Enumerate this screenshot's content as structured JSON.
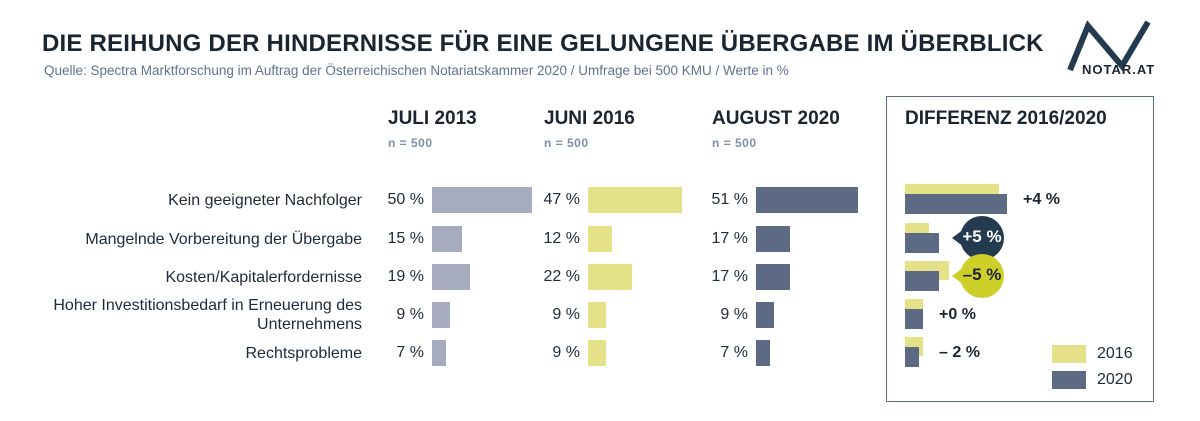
{
  "title": "DIE REIHUNG DER HINDERNISSE FÜR EINE GELUNGENE ÜBERGABE IM ÜBERBLICK",
  "subtitle": "Quelle: Spectra Marktforschung im Auftrag der Österreichischen Notariatskammer 2020 / Umfrage bei 500 KMU / Werte in %",
  "logo_text": "NOTAR.AT",
  "columns": [
    {
      "label": "JULI 2013",
      "n": "n = 500"
    },
    {
      "label": "JUNI 2016",
      "n": "n = 500"
    },
    {
      "label": "AUGUST 2020",
      "n": "n = 500"
    },
    {
      "label": "DIFFERENZ 2016/2020"
    }
  ],
  "categories": [
    "Kein geeigneter Nachfolger",
    "Mangelnde Vorbereitung der Übergabe",
    "Kosten/Kapitalerfordernisse",
    "Hoher Investitionsbedarf in Erneuerung des Unternehmens",
    "Rechtsprobleme"
  ],
  "value_labels": {
    "y2013": [
      "50 %",
      "15 %",
      "19 %",
      "9 %",
      "7 %"
    ],
    "y2016": [
      "47 %",
      "12 %",
      "22 %",
      "9 %",
      "9 %"
    ],
    "y2020": [
      "51 %",
      "17 %",
      "17 %",
      "9 %",
      "7 %"
    ]
  },
  "diff_labels": [
    "+4 %",
    "+5 %",
    "–5 %",
    "+0 %",
    "– 2 %"
  ],
  "legend": [
    "2016",
    "2020"
  ],
  "colors": {
    "y2013": "#a6abbe",
    "y2016": "#e4e188",
    "y2020": "#5c6a84",
    "bubble_positive": "#243a4e",
    "bubble_negative": "#cfcf2a"
  },
  "chart_data": {
    "type": "bar",
    "orientation": "horizontal",
    "categories": [
      "Kein geeigneter Nachfolger",
      "Mangelnde Vorbereitung der Übergabe",
      "Kosten/Kapitalerfordernisse",
      "Hoher Investitionsbedarf in Erneuerung des Unternehmens",
      "Rechtsprobleme"
    ],
    "series": [
      {
        "name": "JULI 2013",
        "values": [
          50,
          15,
          19,
          9,
          7
        ]
      },
      {
        "name": "JUNI 2016",
        "values": [
          47,
          12,
          22,
          9,
          9
        ]
      },
      {
        "name": "AUGUST 2020",
        "values": [
          51,
          17,
          17,
          9,
          7
        ]
      }
    ],
    "difference": {
      "title": "DIFFERENZ 2016/2020",
      "series": [
        {
          "name": "2016",
          "values": [
            47,
            12,
            22,
            9,
            9
          ]
        },
        {
          "name": "2020",
          "values": [
            51,
            17,
            17,
            9,
            7
          ]
        }
      ],
      "values": [
        4,
        5,
        -5,
        0,
        -2
      ]
    },
    "unit": "%",
    "legend_position": "bottom-right"
  }
}
